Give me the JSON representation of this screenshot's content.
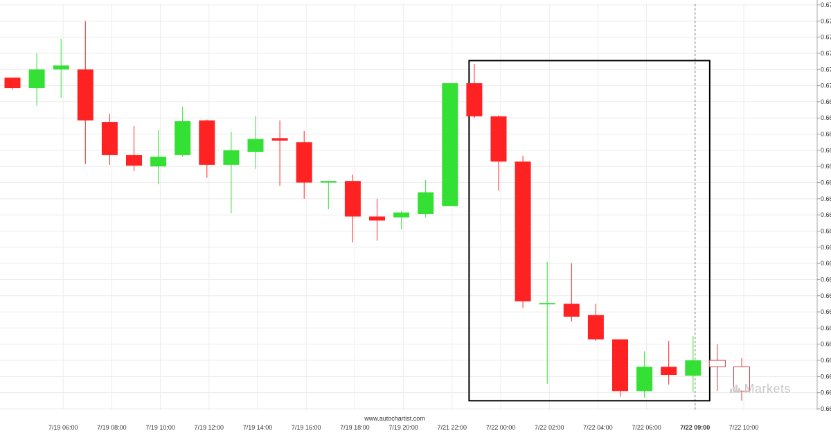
{
  "chart_data": {
    "type": "candlestick",
    "ylim": [
      0.6659,
      0.671
    ],
    "y_tick_step": 0.0002,
    "grid": true,
    "source": "www.autochartist.com",
    "x_tick_labels": [
      {
        "label": "7/19 06:00",
        "index": 2
      },
      {
        "label": "7/19 08:00",
        "index": 4
      },
      {
        "label": "7/19 10:00",
        "index": 6
      },
      {
        "label": "7/19 12:00",
        "index": 8
      },
      {
        "label": "7/19 14:00",
        "index": 10
      },
      {
        "label": "7/19 16:00",
        "index": 12
      },
      {
        "label": "7/19 18:00",
        "index": 14
      },
      {
        "label": "7/19 20:00",
        "index": 16
      },
      {
        "label": "7/21 22:00",
        "index": 18
      },
      {
        "label": "7/22 00:00",
        "index": 20
      },
      {
        "label": "7/22 02:00",
        "index": 22
      },
      {
        "label": "7/22 04:00",
        "index": 24
      },
      {
        "label": "7/22 06:00",
        "index": 26
      },
      {
        "label": "7/22 09:00",
        "index": 28,
        "bold": true
      },
      {
        "label": "7/22 10:00",
        "index": 30
      }
    ],
    "candles": [
      {
        "o": 0.6701,
        "h": 0.6701,
        "l": 0.66995,
        "c": 0.66997
      },
      {
        "o": 0.66997,
        "h": 0.6704,
        "l": 0.66975,
        "c": 0.6702
      },
      {
        "o": 0.6702,
        "h": 0.67058,
        "l": 0.66985,
        "c": 0.67025
      },
      {
        "o": 0.6702,
        "h": 0.6708,
        "l": 0.66903,
        "c": 0.66957
      },
      {
        "o": 0.66955,
        "h": 0.66965,
        "l": 0.66902,
        "c": 0.66914
      },
      {
        "o": 0.66914,
        "h": 0.6695,
        "l": 0.66894,
        "c": 0.66901
      },
      {
        "o": 0.669,
        "h": 0.66945,
        "l": 0.66878,
        "c": 0.66912
      },
      {
        "o": 0.66914,
        "h": 0.66974,
        "l": 0.66912,
        "c": 0.66956
      },
      {
        "o": 0.66957,
        "h": 0.66958,
        "l": 0.66886,
        "c": 0.66902
      },
      {
        "o": 0.66902,
        "h": 0.66943,
        "l": 0.66842,
        "c": 0.6692
      },
      {
        "o": 0.66918,
        "h": 0.66962,
        "l": 0.66897,
        "c": 0.66934
      },
      {
        "o": 0.66935,
        "h": 0.66957,
        "l": 0.66876,
        "c": 0.66932
      },
      {
        "o": 0.6693,
        "h": 0.66944,
        "l": 0.6686,
        "c": 0.6688
      },
      {
        "o": 0.6688,
        "h": 0.66882,
        "l": 0.66847,
        "c": 0.66882
      },
      {
        "o": 0.66882,
        "h": 0.6689,
        "l": 0.66806,
        "c": 0.66838
      },
      {
        "o": 0.66838,
        "h": 0.6686,
        "l": 0.66808,
        "c": 0.66833
      },
      {
        "o": 0.66837,
        "h": 0.66845,
        "l": 0.66822,
        "c": 0.66843
      },
      {
        "o": 0.66841,
        "h": 0.66883,
        "l": 0.66837,
        "c": 0.66868
      },
      {
        "o": 0.66851,
        "h": 0.67003,
        "l": 0.66851,
        "c": 0.67003
      },
      {
        "o": 0.67003,
        "h": 0.67027,
        "l": 0.6696,
        "c": 0.66962
      },
      {
        "o": 0.66962,
        "h": 0.66963,
        "l": 0.6687,
        "c": 0.66906
      },
      {
        "o": 0.66906,
        "h": 0.66913,
        "l": 0.66725,
        "c": 0.66733
      },
      {
        "o": 0.6673,
        "h": 0.66782,
        "l": 0.66631,
        "c": 0.66731
      },
      {
        "o": 0.6673,
        "h": 0.6678,
        "l": 0.66708,
        "c": 0.66714
      },
      {
        "o": 0.66716,
        "h": 0.6673,
        "l": 0.66684,
        "c": 0.66686
      },
      {
        "o": 0.66686,
        "h": 0.66686,
        "l": 0.66615,
        "c": 0.66622
      },
      {
        "o": 0.66622,
        "h": 0.66671,
        "l": 0.66614,
        "c": 0.66652
      },
      {
        "o": 0.66652,
        "h": 0.66684,
        "l": 0.6663,
        "c": 0.66642
      },
      {
        "o": 0.66641,
        "h": 0.6669,
        "l": 0.66621,
        "c": 0.6666
      },
      {
        "o": 0.6666,
        "h": 0.6668,
        "l": 0.66622,
        "c": 0.66652,
        "hollow": true
      },
      {
        "o": 0.66652,
        "h": 0.66663,
        "l": 0.6661,
        "c": 0.66622,
        "hollow": true
      }
    ],
    "pattern_box": {
      "start_index": 18.8,
      "end_index": 28.6,
      "top": 0.67031,
      "bottom": 0.6661
    },
    "current_time_marker_index": 28,
    "colors": {
      "up": "#33e033",
      "down": "#ff2222",
      "hollow_edge": "#d94040",
      "grid": "#ececec",
      "axis_text": "#333333",
      "box": "#000000"
    }
  },
  "watermark": {
    "text": "Markets"
  }
}
